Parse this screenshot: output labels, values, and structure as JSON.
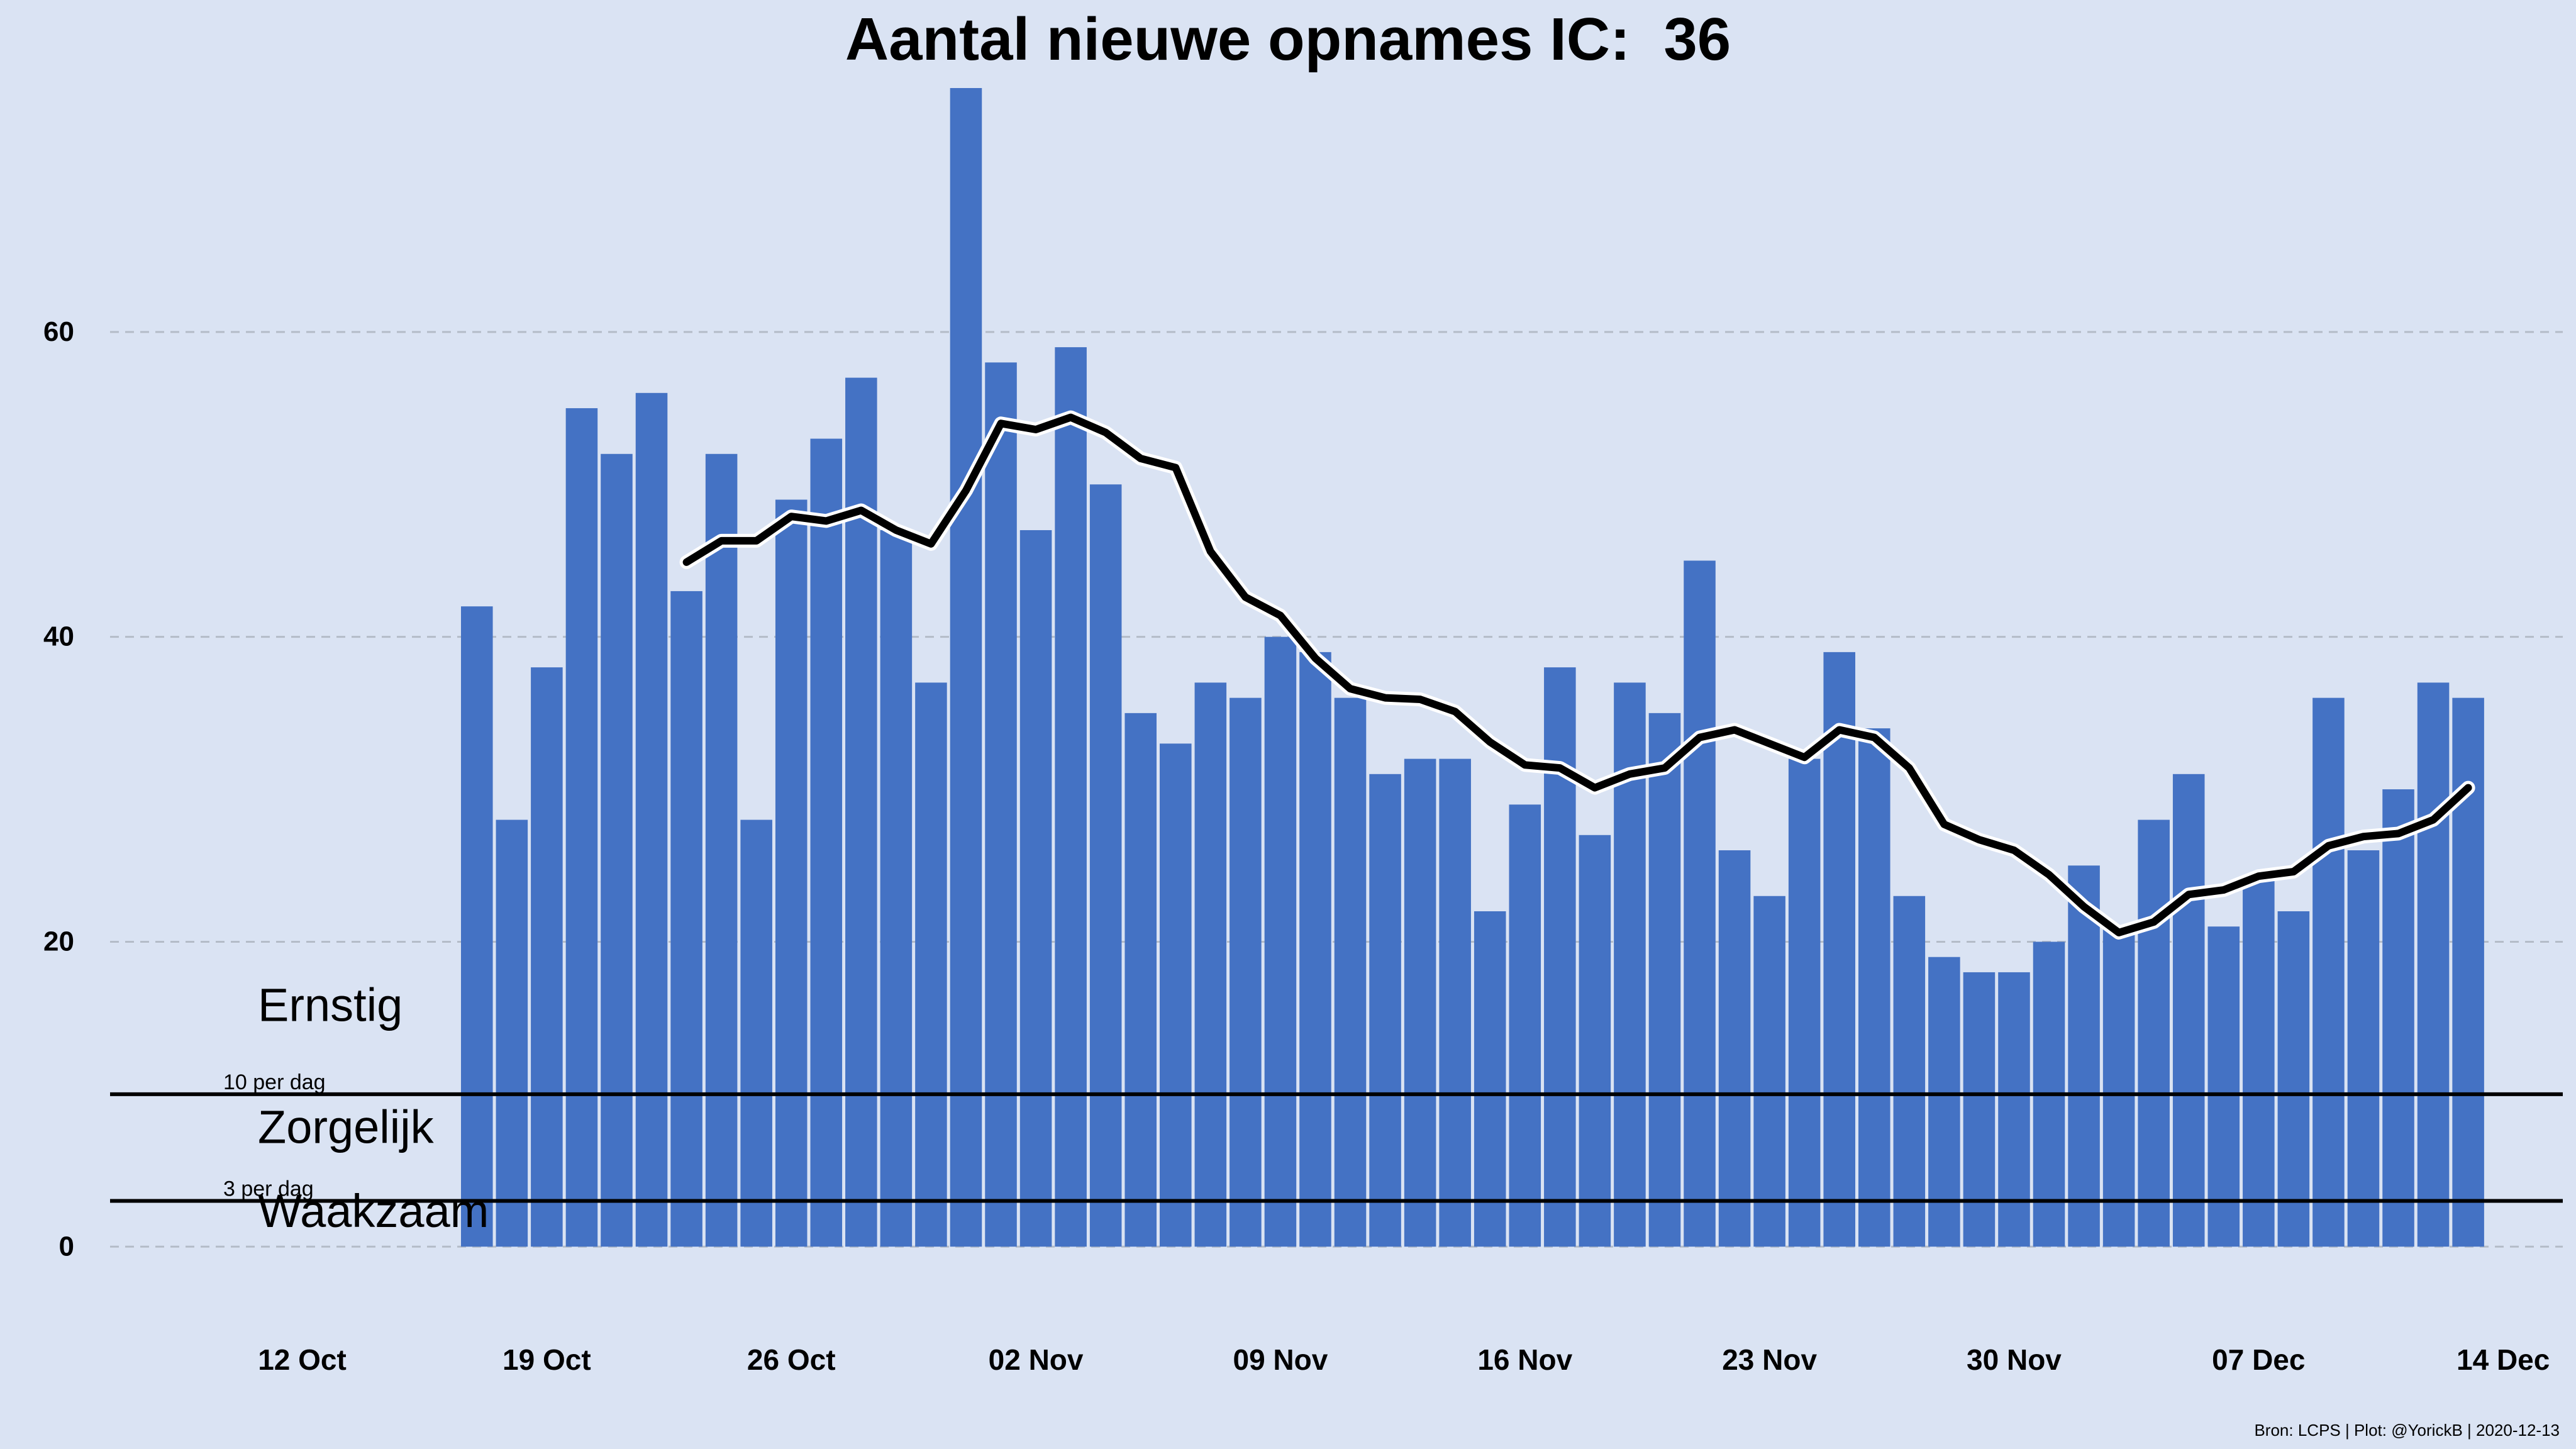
{
  "title": "Aantal nieuwe opnames IC:  36",
  "caption": "Bron: LCPS | Plot: @YorickB |  2020-12-13",
  "chart_data": {
    "type": "bar",
    "title": "Aantal nieuwe opnames IC:  36",
    "xlabel": "",
    "ylabel": "",
    "ylim": [
      -3,
      76
    ],
    "grid": true,
    "y_ticks": [
      0,
      20,
      40,
      60
    ],
    "x_ticks": [
      {
        "date": "2020-10-12",
        "label": "12 Oct"
      },
      {
        "date": "2020-10-19",
        "label": "19 Oct"
      },
      {
        "date": "2020-10-26",
        "label": "26 Oct"
      },
      {
        "date": "2020-11-02",
        "label": "02 Nov"
      },
      {
        "date": "2020-11-09",
        "label": "09 Nov"
      },
      {
        "date": "2020-11-16",
        "label": "16 Nov"
      },
      {
        "date": "2020-11-23",
        "label": "23 Nov"
      },
      {
        "date": "2020-11-30",
        "label": "30 Nov"
      },
      {
        "date": "2020-12-07",
        "label": "07 Dec"
      },
      {
        "date": "2020-12-14",
        "label": "14 Dec"
      }
    ],
    "x_range": [
      "2020-10-07",
      "2020-12-16"
    ],
    "bar_color": "#4472c4",
    "line_color": "#000000",
    "bars": {
      "dates": [
        "2020-10-17",
        "2020-10-18",
        "2020-10-19",
        "2020-10-20",
        "2020-10-21",
        "2020-10-22",
        "2020-10-23",
        "2020-10-24",
        "2020-10-25",
        "2020-10-26",
        "2020-10-27",
        "2020-10-28",
        "2020-10-29",
        "2020-10-30",
        "2020-10-31",
        "2020-11-01",
        "2020-11-02",
        "2020-11-03",
        "2020-11-04",
        "2020-11-05",
        "2020-11-06",
        "2020-11-07",
        "2020-11-08",
        "2020-11-09",
        "2020-11-10",
        "2020-11-11",
        "2020-11-12",
        "2020-11-13",
        "2020-11-14",
        "2020-11-15",
        "2020-11-16",
        "2020-11-17",
        "2020-11-18",
        "2020-11-19",
        "2020-11-20",
        "2020-11-21",
        "2020-11-22",
        "2020-11-23",
        "2020-11-24",
        "2020-11-25",
        "2020-11-26",
        "2020-11-27",
        "2020-11-28",
        "2020-11-29",
        "2020-11-30",
        "2020-12-01",
        "2020-12-02",
        "2020-12-03",
        "2020-12-04",
        "2020-12-05",
        "2020-12-06",
        "2020-12-07",
        "2020-12-08",
        "2020-12-09",
        "2020-12-10",
        "2020-12-11",
        "2020-12-12",
        "2020-12-13"
      ],
      "values": [
        42,
        28,
        38,
        55,
        52,
        56,
        43,
        52,
        28,
        49,
        53,
        57,
        47,
        37,
        76,
        58,
        47,
        59,
        50,
        35,
        33,
        37,
        36,
        40,
        39,
        36,
        31,
        32,
        32,
        22,
        29,
        38,
        27,
        37,
        35,
        45,
        26,
        23,
        32,
        39,
        34,
        23,
        19,
        18,
        18,
        20,
        25,
        21,
        28,
        31,
        21,
        24,
        22,
        36,
        26,
        30,
        37,
        36
      ]
    },
    "rolling_avg": {
      "dates": [
        "2020-10-23",
        "2020-10-24",
        "2020-10-25",
        "2020-10-26",
        "2020-10-27",
        "2020-10-28",
        "2020-10-29",
        "2020-10-30",
        "2020-10-31",
        "2020-11-01",
        "2020-11-02",
        "2020-11-03",
        "2020-11-04",
        "2020-11-05",
        "2020-11-06",
        "2020-11-07",
        "2020-11-08",
        "2020-11-09",
        "2020-11-10",
        "2020-11-11",
        "2020-11-12",
        "2020-11-13",
        "2020-11-14",
        "2020-11-15",
        "2020-11-16",
        "2020-11-17",
        "2020-11-18",
        "2020-11-19",
        "2020-11-20",
        "2020-11-21",
        "2020-11-22",
        "2020-11-23",
        "2020-11-24",
        "2020-11-25",
        "2020-11-26",
        "2020-11-27",
        "2020-11-28",
        "2020-11-29",
        "2020-11-30",
        "2020-12-01",
        "2020-12-02",
        "2020-12-03",
        "2020-12-04",
        "2020-12-05",
        "2020-12-06",
        "2020-12-07",
        "2020-12-08",
        "2020-12-09",
        "2020-12-10",
        "2020-12-11",
        "2020-12-12",
        "2020-12-13"
      ],
      "values": [
        44.9,
        46.3,
        46.3,
        47.9,
        47.6,
        48.3,
        47.0,
        46.1,
        49.6,
        54.0,
        53.6,
        54.4,
        53.4,
        51.7,
        51.1,
        45.6,
        42.6,
        41.4,
        38.6,
        36.6,
        36.0,
        35.9,
        35.1,
        33.1,
        31.6,
        31.4,
        30.1,
        31.0,
        31.4,
        33.4,
        33.9,
        33.0,
        32.1,
        33.9,
        33.4,
        31.4,
        27.7,
        26.7,
        26.0,
        24.4,
        22.3,
        20.6,
        21.3,
        23.1,
        23.4,
        24.3,
        24.6,
        26.3,
        26.9,
        27.1,
        28.0,
        30.1
      ]
    },
    "thresholds": [
      {
        "value": 10,
        "label": "10 per dag"
      },
      {
        "value": 3,
        "label": "3 per dag"
      }
    ],
    "zones": [
      {
        "label": "Ernstig",
        "y": 14.8
      },
      {
        "label": "Zorgelijk",
        "y": 6.8
      },
      {
        "label": "Waakzaam",
        "y": 1.3
      }
    ]
  }
}
